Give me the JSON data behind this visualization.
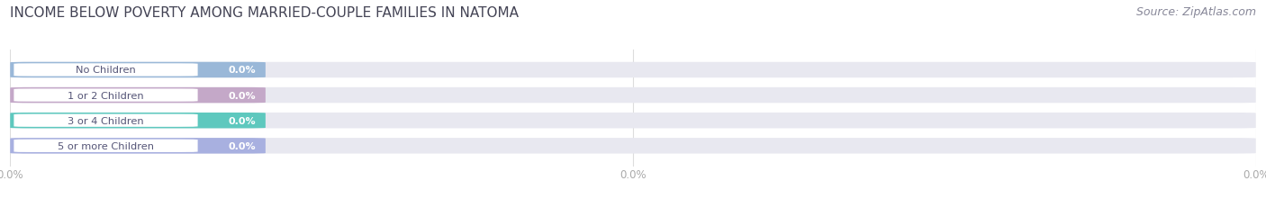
{
  "title": "INCOME BELOW POVERTY AMONG MARRIED-COUPLE FAMILIES IN NATOMA",
  "source": "Source: ZipAtlas.com",
  "categories": [
    "No Children",
    "1 or 2 Children",
    "3 or 4 Children",
    "5 or more Children"
  ],
  "values": [
    0.0,
    0.0,
    0.0,
    0.0
  ],
  "bar_colors": [
    "#9ab8d8",
    "#c4a8c8",
    "#5ec8be",
    "#a8b0e0"
  ],
  "bar_bg_color": "#e8e8f0",
  "label_bg_color": "#ffffff",
  "background_color": "#ffffff",
  "title_fontsize": 11,
  "source_fontsize": 9,
  "text_color": "#555577",
  "value_color_white": "#ffffff",
  "tick_label_color": "#aaaaaa",
  "grid_color": "#dddddd"
}
